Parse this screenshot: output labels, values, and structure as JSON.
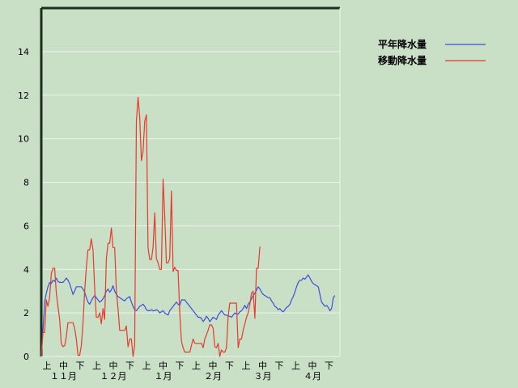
{
  "chart_data": {
    "type": "line",
    "title": "",
    "xlabel": "",
    "ylabel": "",
    "ylim": [
      0,
      16
    ],
    "yticks": [
      "0",
      "2",
      "4",
      "6",
      "8",
      "10",
      "12",
      "14"
    ],
    "grid": true,
    "legend_placement": "top-right",
    "x_sub_labels": [
      "上",
      "中",
      "下"
    ],
    "months": [
      "１１月",
      "１２月",
      "１月",
      "２月",
      "３月",
      "４月"
    ],
    "x_count": 180,
    "series": [
      {
        "name": "平年降水量",
        "color": "#3b50d8",
        "values": [
          0.0,
          1.2,
          2.5,
          2.9,
          3.2,
          3.4,
          3.35,
          3.5,
          3.45,
          3.6,
          3.45,
          3.4,
          3.4,
          3.4,
          3.5,
          3.6,
          3.5,
          3.35,
          3.1,
          2.85,
          3.0,
          3.2,
          3.2,
          3.2,
          3.2,
          3.1,
          2.95,
          2.7,
          2.5,
          2.4,
          2.55,
          2.7,
          2.8,
          2.7,
          2.6,
          2.5,
          2.55,
          2.65,
          2.8,
          3.0,
          3.1,
          2.95,
          3.05,
          3.25,
          3.0,
          2.85,
          2.75,
          2.7,
          2.65,
          2.6,
          2.55,
          2.65,
          2.7,
          2.75,
          2.5,
          2.3,
          2.15,
          2.1,
          2.2,
          2.3,
          2.35,
          2.4,
          2.3,
          2.15,
          2.1,
          2.1,
          2.15,
          2.1,
          2.1,
          2.15,
          2.1,
          2.0,
          2.05,
          2.1,
          2.0,
          1.95,
          1.9,
          2.1,
          2.2,
          2.3,
          2.4,
          2.5,
          2.4,
          2.35,
          2.6,
          2.6,
          2.6,
          2.5,
          2.4,
          2.3,
          2.2,
          2.1,
          2.0,
          1.9,
          1.8,
          1.8,
          1.75,
          1.6,
          1.7,
          1.85,
          1.75,
          1.6,
          1.7,
          1.8,
          1.75,
          1.7,
          1.9,
          2.0,
          2.1,
          2.0,
          1.9,
          1.9,
          1.85,
          1.85,
          1.8,
          1.9,
          2.0,
          1.95,
          1.95,
          2.05,
          2.1,
          2.2,
          2.35,
          2.2,
          2.4,
          2.5,
          2.65,
          2.8,
          2.9,
          3.05,
          3.2,
          3.1,
          2.95,
          2.85,
          2.8,
          2.75,
          2.7,
          2.7,
          2.55,
          2.45,
          2.3,
          2.25,
          2.15,
          2.2,
          2.1,
          2.05,
          2.15,
          2.25,
          2.3,
          2.4,
          2.6,
          2.75,
          2.95,
          3.2,
          3.4,
          3.5,
          3.5,
          3.6,
          3.55,
          3.65,
          3.75,
          3.6,
          3.45,
          3.35,
          3.3,
          3.25,
          3.2,
          2.85,
          2.5,
          2.4,
          2.3,
          2.35,
          2.25,
          2.1,
          2.2,
          2.7,
          2.8
        ]
      },
      {
        "name": "移動降水量",
        "color": "#e53a2c",
        "values": [
          0.05,
          1.1,
          1.1,
          2.6,
          2.3,
          2.7,
          3.8,
          4.05,
          4.05,
          2.9,
          2.3,
          1.7,
          0.6,
          0.45,
          0.5,
          0.9,
          1.55,
          1.55,
          1.55,
          1.55,
          1.3,
          0.8,
          0.05,
          0.05,
          0.5,
          1.5,
          3.0,
          4.1,
          4.9,
          4.9,
          5.4,
          4.9,
          3.1,
          1.8,
          1.8,
          2.0,
          1.5,
          2.2,
          1.7,
          4.5,
          5.2,
          5.2,
          5.9,
          5.0,
          5.0,
          3.0,
          2.2,
          1.2,
          1.2,
          1.2,
          1.2,
          1.4,
          0.45,
          0.8,
          0.8,
          0.0,
          0.5,
          10.8,
          11.9,
          11.0,
          9.0,
          9.4,
          10.8,
          11.1,
          5.0,
          4.45,
          4.45,
          5.0,
          6.6,
          4.5,
          4.3,
          4.0,
          4.0,
          8.15,
          6.5,
          4.3,
          4.3,
          4.5,
          7.6,
          3.9,
          4.1,
          3.95,
          3.95,
          2.0,
          0.7,
          0.4,
          0.2,
          0.2,
          0.2,
          0.2,
          0.5,
          0.8,
          0.6,
          0.6,
          0.6,
          0.6,
          0.6,
          0.4,
          0.8,
          1.0,
          1.2,
          1.45,
          1.45,
          1.3,
          0.45,
          0.4,
          0.6,
          0.0,
          0.3,
          0.2,
          0.2,
          0.4,
          1.85,
          2.45,
          2.45,
          2.45,
          2.45,
          2.45,
          0.4,
          0.8,
          0.8,
          1.2,
          1.5,
          1.8,
          2.0,
          2.4,
          2.9,
          3.0,
          1.75,
          4.05,
          4.05,
          5.05
        ]
      }
    ]
  },
  "legend": {
    "items": [
      {
        "name": "平年降水量",
        "color": "#3b50d8"
      },
      {
        "name": "移動降水量",
        "color": "#e53a2c"
      }
    ]
  }
}
